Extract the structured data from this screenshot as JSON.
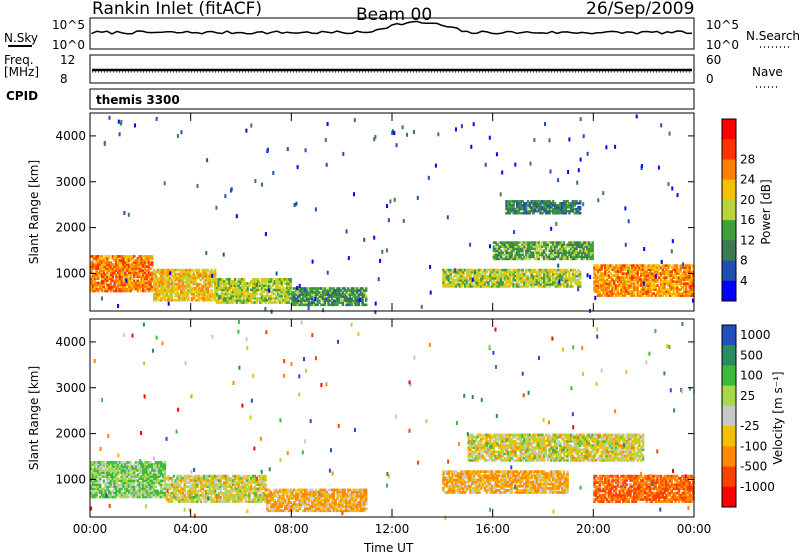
{
  "header": {
    "title": "Rankin Inlet (fitACF)",
    "beam": "Beam 00",
    "date": "26/Sep/2009"
  },
  "params": {
    "nsky_label": "N.Sky",
    "nsearch_label": "N.Search",
    "freq_label": "Freq.",
    "freq_unit": "[MHz]",
    "nave_label": "Nave",
    "cpid_label": "CPID",
    "cpid_value": "themis 3300",
    "noise_ticks": [
      "10^5",
      "10^0"
    ],
    "freq_ticks": [
      "12",
      "8"
    ],
    "nave_ticks": [
      "60",
      "0"
    ]
  },
  "colors": {
    "power": [
      "#0000ff",
      "#1f4fb0",
      "#3b7a53",
      "#3fa03a",
      "#b8d43a",
      "#f2c200",
      "#ff7f00",
      "#ff3300",
      "#ff0000"
    ],
    "velocity": [
      "#2050c0",
      "#2a8a60",
      "#3cba3c",
      "#a8d84a",
      "#c8c8c8",
      "#f2c000",
      "#ff8a00",
      "#ff4000",
      "#ff0000"
    ]
  },
  "chart_data": [
    {
      "type": "heatmap",
      "name": "power",
      "xlabel": "",
      "ylabel": "Slant Range [km]",
      "xlim": [
        "00:00",
        "24:00"
      ],
      "ylim": [
        180,
        4500
      ],
      "x_ticks": [
        "00:00",
        "04:00",
        "08:00",
        "12:00",
        "16:00",
        "20:00",
        "00:00"
      ],
      "y_ticks": [
        1000,
        2000,
        3000,
        4000
      ],
      "colorbar": {
        "label": "Power [dB]",
        "ticks": [
          4,
          8,
          12,
          16,
          20,
          24,
          28
        ]
      },
      "regions": [
        {
          "t0": 0.0,
          "t1": 2.5,
          "r0": 600,
          "r1": 1400,
          "value": 26
        },
        {
          "t0": 2.5,
          "t1": 5.0,
          "r0": 400,
          "r1": 1100,
          "value": 22
        },
        {
          "t0": 5.0,
          "t1": 8.0,
          "r0": 350,
          "r1": 900,
          "value": 18
        },
        {
          "t0": 8.0,
          "t1": 11.0,
          "r0": 300,
          "r1": 700,
          "value": 12
        },
        {
          "t0": 14.0,
          "t1": 19.5,
          "r0": 700,
          "r1": 1100,
          "value": 18
        },
        {
          "t0": 16.0,
          "t1": 20.0,
          "r0": 1300,
          "r1": 1700,
          "value": 14
        },
        {
          "t0": 16.5,
          "t1": 19.5,
          "r0": 2300,
          "r1": 2600,
          "value": 10
        },
        {
          "t0": 20.0,
          "t1": 24.0,
          "r0": 500,
          "r1": 1200,
          "value": 25
        }
      ]
    },
    {
      "type": "heatmap",
      "name": "velocity",
      "xlabel": "Time UT",
      "ylabel": "Slant Range [km]",
      "xlim": [
        "00:00",
        "24:00"
      ],
      "ylim": [
        180,
        4500
      ],
      "x_ticks": [
        "00:00",
        "04:00",
        "08:00",
        "12:00",
        "16:00",
        "20:00",
        "00:00"
      ],
      "y_ticks": [
        1000,
        2000,
        3000,
        4000
      ],
      "colorbar": {
        "label": "Velocity [m s⁻¹]",
        "ticks": [
          1000,
          500,
          100,
          25,
          -25,
          -100,
          -500,
          -1000
        ]
      },
      "regions": [
        {
          "t0": 0.0,
          "t1": 3.0,
          "r0": 600,
          "r1": 1400,
          "value": 100
        },
        {
          "t0": 3.0,
          "t1": 7.0,
          "r0": 500,
          "r1": 1100,
          "value": 0
        },
        {
          "t0": 7.0,
          "t1": 11.0,
          "r0": 300,
          "r1": 800,
          "value": -100
        },
        {
          "t0": 14.0,
          "t1": 19.0,
          "r0": 700,
          "r1": 1200,
          "value": -100
        },
        {
          "t0": 15.0,
          "t1": 22.0,
          "r0": 1400,
          "r1": 2000,
          "value": 0
        },
        {
          "t0": 20.0,
          "t1": 24.0,
          "r0": 500,
          "r1": 1100,
          "value": -500
        }
      ]
    }
  ]
}
